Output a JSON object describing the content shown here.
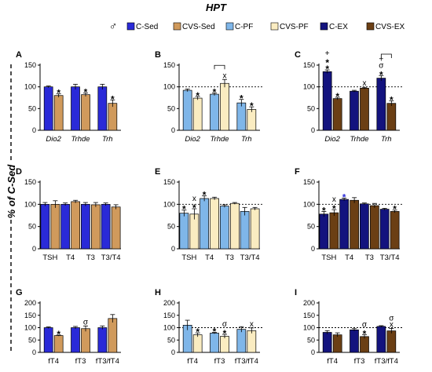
{
  "figure": {
    "title": "HPT",
    "sex_symbol": "♂",
    "ylabel": "% of C-Sed",
    "legend": [
      {
        "label": "C-Sed",
        "color": "#2A2AD8"
      },
      {
        "label": "CVS-Sed",
        "color": "#D09A5C"
      },
      {
        "label": "C-PF",
        "color": "#7FB6E9"
      },
      {
        "label": "CVS-PF",
        "color": "#FAECC1"
      },
      {
        "label": "C-EX",
        "color": "#13137E"
      },
      {
        "label": "CVS-EX",
        "color": "#6B3F14"
      }
    ]
  },
  "chart_data": [
    {
      "panel": "A",
      "type": "bar",
      "categories": [
        "Dio2",
        "Trhde",
        "Trh"
      ],
      "italic_categories": true,
      "ylim": [
        0,
        150
      ],
      "yticks": [
        0,
        50,
        100,
        150
      ],
      "reference_line": null,
      "series": [
        {
          "name": "C-Sed",
          "values": [
            100,
            100,
            100
          ],
          "errors": [
            2,
            6,
            6
          ]
        },
        {
          "name": "CVS-Sed",
          "values": [
            80,
            82,
            62
          ],
          "errors": [
            4,
            4,
            8
          ]
        }
      ],
      "annotations": [
        {
          "category": 0,
          "series": 1,
          "marks": [
            "*"
          ]
        },
        {
          "category": 1,
          "series": 1,
          "marks": [
            "*"
          ]
        },
        {
          "category": 2,
          "series": 1,
          "marks": [
            "*"
          ]
        }
      ],
      "brackets": []
    },
    {
      "panel": "B",
      "type": "bar",
      "categories": [
        "Dio2",
        "Trhde",
        "Trh"
      ],
      "italic_categories": true,
      "ylim": [
        0,
        150
      ],
      "yticks": [
        0,
        50,
        100,
        150
      ],
      "reference_line": 100,
      "series": [
        {
          "name": "C-PF",
          "values": [
            92,
            83,
            63
          ],
          "errors": [
            3,
            3,
            8
          ]
        },
        {
          "name": "CVS-PF",
          "values": [
            74,
            108,
            48
          ],
          "errors": [
            4,
            9,
            6
          ]
        }
      ],
      "annotations": [
        {
          "category": 0,
          "series": 1,
          "marks": [
            "*"
          ]
        },
        {
          "category": 1,
          "series": 0,
          "marks": [
            "*"
          ]
        },
        {
          "category": 1,
          "series": 1,
          "marks": [
            "x"
          ]
        },
        {
          "category": 2,
          "series": 0,
          "marks": [
            "*"
          ]
        },
        {
          "category": 2,
          "series": 1,
          "marks": [
            "*"
          ]
        }
      ],
      "brackets": [
        {
          "category": 1
        }
      ]
    },
    {
      "panel": "C",
      "type": "bar",
      "categories": [
        "Dio2",
        "Trhde",
        "Trh"
      ],
      "italic_categories": true,
      "ylim": [
        0,
        150
      ],
      "yticks": [
        0,
        50,
        100,
        150
      ],
      "reference_line": 100,
      "series": [
        {
          "name": "C-EX",
          "values": [
            135,
            90,
            120
          ],
          "errors": [
            4,
            2,
            6
          ]
        },
        {
          "name": "CVS-EX",
          "values": [
            73,
            97,
            62
          ],
          "errors": [
            3,
            2,
            6
          ]
        }
      ],
      "annotations": [
        {
          "category": 0,
          "series": 0,
          "marks": [
            "*",
            "*",
            "+"
          ]
        },
        {
          "category": 0,
          "series": 1,
          "marks": [
            "*"
          ]
        },
        {
          "category": 1,
          "series": 1,
          "marks": [
            "x"
          ]
        },
        {
          "category": 2,
          "series": 0,
          "marks": [
            "*",
            "σ",
            "+"
          ]
        },
        {
          "category": 2,
          "series": 1,
          "marks": [
            "*"
          ]
        }
      ],
      "brackets": [
        {
          "category": 2
        }
      ]
    },
    {
      "panel": "D",
      "type": "bar",
      "categories": [
        "TSH",
        "T4",
        "T3",
        "T3/T4"
      ],
      "italic_categories": false,
      "ylim": [
        0,
        150
      ],
      "yticks": [
        0,
        50,
        100,
        150
      ],
      "reference_line": null,
      "series": [
        {
          "name": "C-Sed",
          "values": [
            100,
            100,
            100,
            100
          ],
          "errors": [
            4,
            3,
            4,
            3
          ]
        },
        {
          "name": "CVS-Sed",
          "values": [
            100,
            106,
            99,
            94
          ],
          "errors": [
            8,
            3,
            5,
            5
          ]
        }
      ],
      "annotations": [],
      "brackets": []
    },
    {
      "panel": "E",
      "type": "bar",
      "categories": [
        "TSH",
        "T4",
        "T3",
        "T3/T4"
      ],
      "italic_categories": false,
      "ylim": [
        0,
        150
      ],
      "yticks": [
        0,
        50,
        100,
        150
      ],
      "reference_line": 100,
      "series": [
        {
          "name": "C-PF",
          "values": [
            80,
            113,
            96,
            84
          ],
          "errors": [
            7,
            6,
            3,
            9
          ]
        },
        {
          "name": "CVS-PF",
          "values": [
            78,
            113,
            102,
            90
          ],
          "errors": [
            12,
            3,
            2,
            3
          ]
        }
      ],
      "annotations": [
        {
          "category": 0,
          "series": 0,
          "marks": [
            "*"
          ]
        },
        {
          "category": 0,
          "series": 1,
          "marks": [
            "*",
            "x"
          ]
        },
        {
          "category": 1,
          "series": 0,
          "marks": [
            "*"
          ]
        }
      ],
      "brackets": []
    },
    {
      "panel": "F",
      "type": "bar",
      "categories": [
        "TSH",
        "T4",
        "T3",
        "T3/T4"
      ],
      "italic_categories": false,
      "ylim": [
        0,
        150
      ],
      "yticks": [
        0,
        50,
        100,
        150
      ],
      "reference_line": 100,
      "series": [
        {
          "name": "C-EX",
          "values": [
            78,
            111,
            101,
            89
          ],
          "errors": [
            6,
            3,
            2,
            2
          ]
        },
        {
          "name": "CVS-EX",
          "values": [
            81,
            109,
            97,
            84
          ],
          "errors": [
            7,
            6,
            5,
            3
          ]
        }
      ],
      "annotations": [
        {
          "category": 0,
          "series": 0,
          "marks": [
            "*"
          ]
        },
        {
          "category": 0,
          "series": 1,
          "marks": [
            "*",
            "x"
          ]
        },
        {
          "category": 1,
          "series": 0,
          "marks": [
            "*"
          ],
          "color": "#2A2AD8"
        },
        {
          "category": 3,
          "series": 1,
          "marks": [
            "*"
          ]
        }
      ],
      "brackets": []
    },
    {
      "panel": "G",
      "type": "bar",
      "categories": [
        "fT4",
        "fT3",
        "fT3/fT4"
      ],
      "italic_categories": false,
      "ylim": [
        0,
        200
      ],
      "yticks": [
        0,
        50,
        100,
        150,
        200
      ],
      "reference_line": null,
      "series": [
        {
          "name": "C-Sed",
          "values": [
            100,
            100,
            100
          ],
          "errors": [
            3,
            5,
            7
          ]
        },
        {
          "name": "CVS-Sed",
          "values": [
            68,
            96,
            137
          ],
          "errors": [
            2,
            11,
            16
          ]
        }
      ],
      "annotations": [
        {
          "category": 0,
          "series": 1,
          "marks": [
            "*"
          ]
        },
        {
          "category": 1,
          "series": 1,
          "marks": [
            "σ"
          ]
        }
      ],
      "brackets": []
    },
    {
      "panel": "H",
      "type": "bar",
      "categories": [
        "fT4",
        "fT3",
        "fT3/fT4"
      ],
      "italic_categories": false,
      "ylim": [
        0,
        200
      ],
      "yticks": [
        0,
        50,
        100,
        150,
        200
      ],
      "reference_line": 100,
      "series": [
        {
          "name": "C-PF",
          "values": [
            110,
            78,
            93
          ],
          "errors": [
            20,
            3,
            11
          ]
        },
        {
          "name": "CVS-PF",
          "values": [
            71,
            65,
            88
          ],
          "errors": [
            8,
            8,
            11
          ]
        }
      ],
      "annotations": [
        {
          "category": 0,
          "series": 1,
          "marks": [
            "*"
          ]
        },
        {
          "category": 1,
          "series": 0,
          "marks": [
            "*"
          ]
        },
        {
          "category": 1,
          "series": 1,
          "marks": [
            "*",
            "σ"
          ]
        },
        {
          "category": 2,
          "series": 1,
          "marks": [
            "x"
          ]
        }
      ],
      "brackets": []
    },
    {
      "panel": "I",
      "type": "bar",
      "categories": [
        "fT4",
        "fT3",
        "fT3/fT4"
      ],
      "italic_categories": false,
      "ylim": [
        0,
        200
      ],
      "yticks": [
        0,
        50,
        100,
        150,
        200
      ],
      "reference_line": 100,
      "series": [
        {
          "name": "C-EX",
          "values": [
            81,
            91,
            105
          ],
          "errors": [
            7,
            5,
            3
          ]
        },
        {
          "name": "CVS-EX",
          "values": [
            71,
            64,
            87
          ],
          "errors": [
            8,
            8,
            10
          ]
        }
      ],
      "annotations": [
        {
          "category": 1,
          "series": 1,
          "marks": [
            "*",
            "σ"
          ]
        },
        {
          "category": 2,
          "series": 1,
          "marks": [
            "x",
            "σ"
          ]
        }
      ],
      "brackets": []
    }
  ]
}
